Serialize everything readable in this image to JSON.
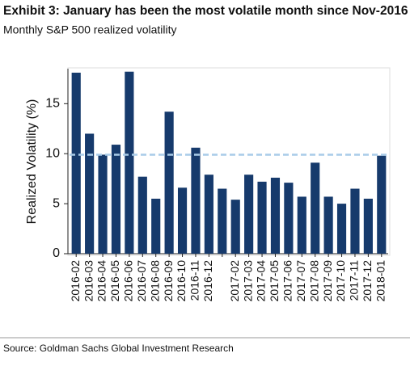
{
  "chart_data": {
    "type": "bar",
    "title": "Exhibit 3: January has been the most volatile month since Nov-2016",
    "subtitle": "Monthly S&P 500 realized volatility",
    "y_label": "Realized Volatility (%)",
    "source": "Source: Goldman Sachs Global Investment Research",
    "categories": [
      "2016-02",
      "2016-03",
      "2016-04",
      "2016-05",
      "2016-06",
      "2016-07",
      "2016-08",
      "2016-09",
      "2016-10",
      "2016-11",
      "2016-12",
      null,
      "2017-02",
      "2017-03",
      "2017-04",
      "2017-05",
      "2017-06",
      "2017-07",
      "2017-08",
      "2017-09",
      "2017-10",
      "2017-11",
      "2017-12",
      "2018-01"
    ],
    "values": [
      18.1,
      12.0,
      9.9,
      10.9,
      18.2,
      7.7,
      5.5,
      14.2,
      6.6,
      10.6,
      7.9,
      6.5,
      5.4,
      7.9,
      7.2,
      7.6,
      7.1,
      5.7,
      9.1,
      5.7,
      5.0,
      6.5,
      5.5,
      9.8
    ],
    "color": "#163a6c",
    "reference_line": {
      "value": 9.9,
      "color": "#a9cbe8"
    },
    "ylim": [
      0,
      18.5
    ],
    "yticks": [
      0,
      5,
      10,
      15
    ]
  }
}
